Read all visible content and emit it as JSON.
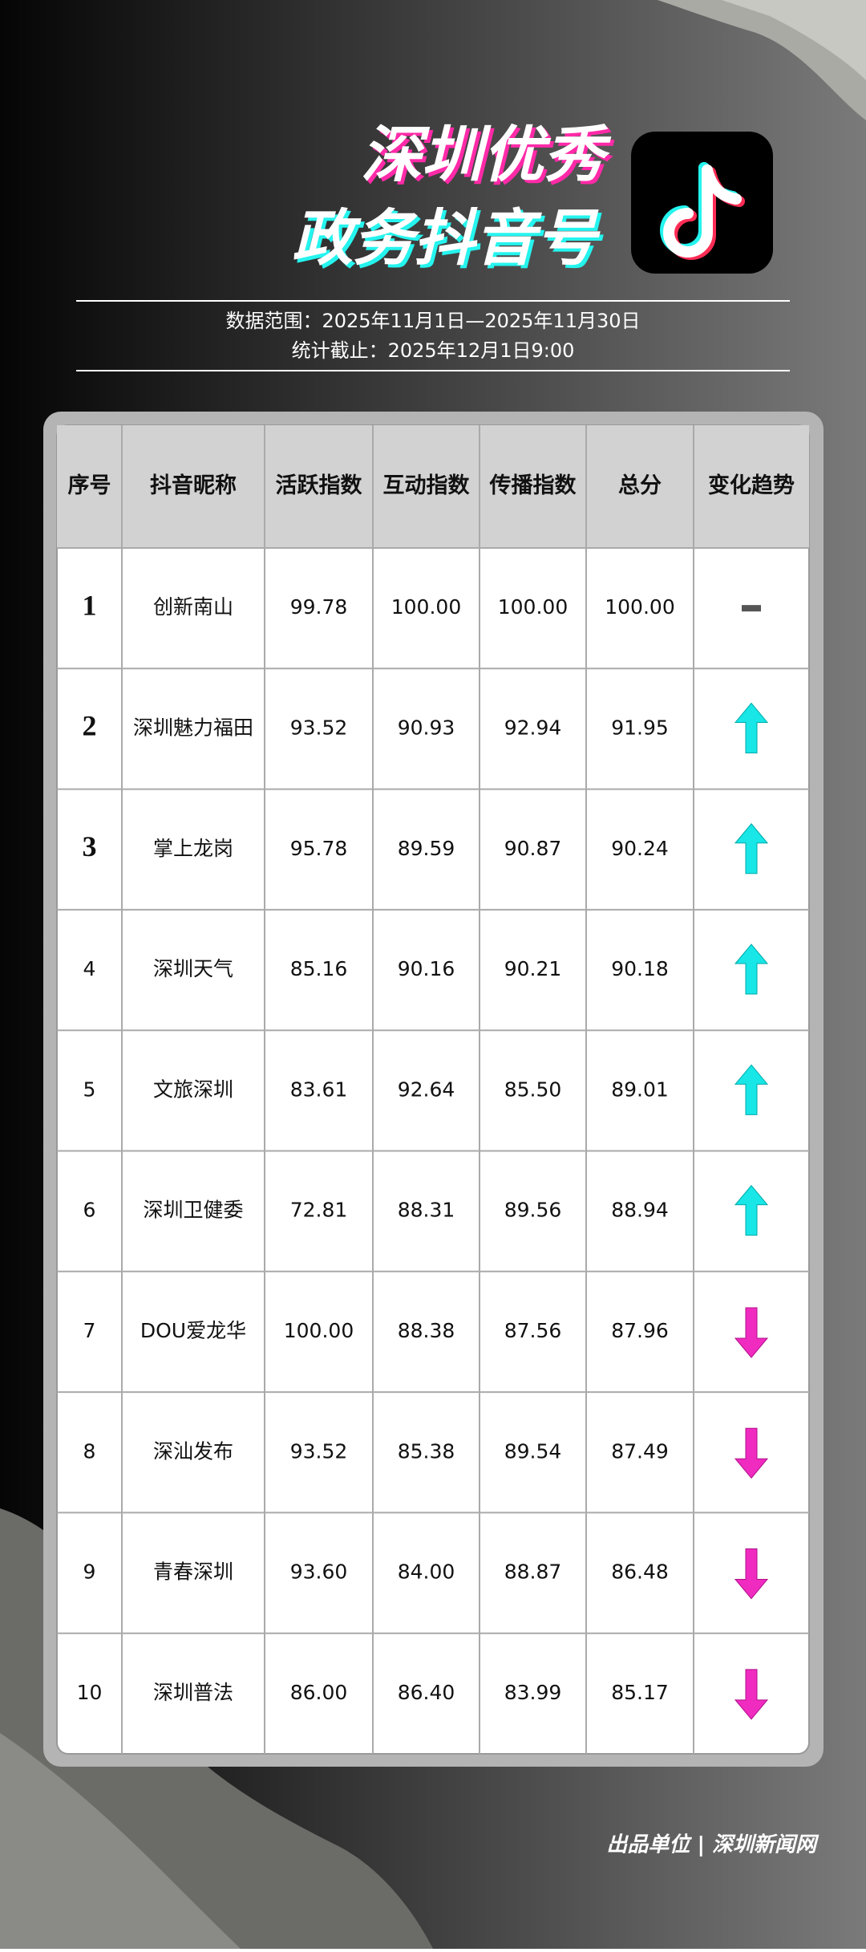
{
  "header": {
    "title_lines": [
      "深圳优秀",
      "政务抖音号"
    ],
    "info_lines": [
      "数据范围：2025年11月1日—2025年11月30日",
      "统计截止：2025年12月1日9:00"
    ]
  },
  "table": {
    "columns": [
      "序号",
      "抖音昵称",
      "活跃指数",
      "互动指数",
      "传播指数",
      "总分",
      "变化趋势"
    ],
    "rows": [
      [
        "1",
        "创新南山",
        "99.78",
        "100.00",
        "100.00",
        "100.00"
      ],
      [
        "2",
        "深圳魅力福田",
        "93.52",
        "90.93",
        "92.94",
        "91.95"
      ],
      [
        "3",
        "掌上龙岗",
        "95.78",
        "89.59",
        "90.87",
        "90.24"
      ],
      [
        "4",
        "深圳天气",
        "85.16",
        "90.16",
        "90.21",
        "90.18"
      ],
      [
        "5",
        "文旅深圳",
        "83.61",
        "92.64",
        "85.50",
        "89.01"
      ],
      [
        "6",
        "深圳卫健委",
        "72.81",
        "88.31",
        "89.56",
        "88.94"
      ],
      [
        "7",
        "DOU爱龙华",
        "100.00",
        "88.38",
        "87.56",
        "87.96"
      ],
      [
        "8",
        "深汕发布",
        "93.52",
        "85.38",
        "89.54",
        "87.49"
      ],
      [
        "9",
        "青春深圳",
        "93.60",
        "84.00",
        "88.87",
        "86.48"
      ],
      [
        "10",
        "深圳普法",
        "86.00",
        "86.40",
        "83.99",
        "85.17"
      ]
    ],
    "trends": [
      "same",
      "up",
      "up",
      "up",
      "up",
      "up",
      "down",
      "down",
      "down",
      "down"
    ]
  },
  "footer": "出品单位 | 深圳新闻网"
}
